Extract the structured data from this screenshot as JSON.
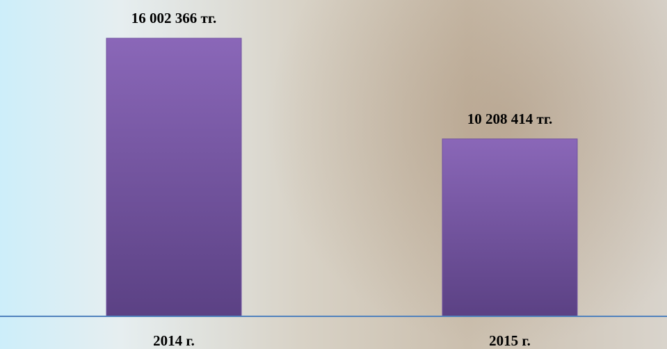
{
  "chart_data": {
    "type": "bar",
    "categories": [
      "2014 г.",
      "2015 г."
    ],
    "values": [
      16002366,
      10208414
    ],
    "value_labels": [
      "16 002 366 тг.",
      "10 208 414 тг."
    ],
    "color": "#7052a0"
  }
}
